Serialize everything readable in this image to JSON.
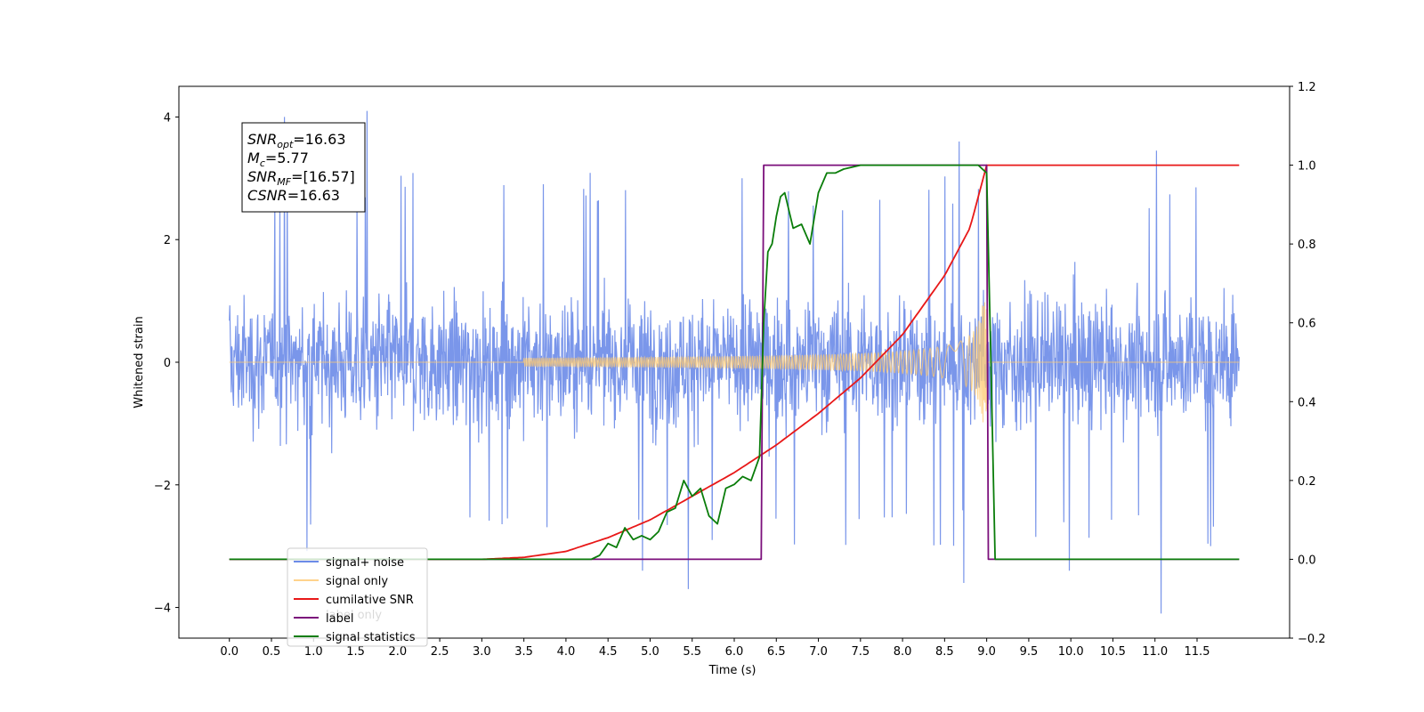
{
  "chart_data": {
    "type": "line",
    "xlabel": "Time (s)",
    "ylabel": "Whitened strain",
    "ylabel_right": "",
    "xlim": [
      -0.6,
      12.6
    ],
    "ylim": [
      -4.5,
      4.5
    ],
    "ylim_right": [
      -0.2,
      1.2
    ],
    "xticks": [
      0.0,
      0.5,
      1.0,
      1.5,
      2.0,
      2.5,
      3.0,
      3.5,
      4.0,
      4.5,
      5.0,
      5.5,
      6.0,
      6.5,
      7.0,
      7.5,
      8.0,
      8.5,
      9.0,
      9.5,
      10.0,
      10.5,
      11.0,
      11.5
    ],
    "xtick_labels": [
      "0.0",
      "0.5",
      "1.0",
      "1.5",
      "2.0",
      "2.5",
      "3.0",
      "3.5",
      "4.0",
      "4.5",
      "5.0",
      "5.5",
      "6.0",
      "6.5",
      "7.0",
      "7.5",
      "8.0",
      "8.5",
      "9.0",
      "9.5",
      "10.0",
      "10.5",
      "11.0",
      "11.5"
    ],
    "yticks_left": [
      4,
      2,
      0,
      -2,
      -4
    ],
    "yticks_left_labels": [
      "4",
      "2",
      "0",
      "−2",
      "−4"
    ],
    "yticks_right": [
      1.2,
      1.0,
      0.8,
      0.6,
      0.4,
      0.2,
      0.0,
      -0.2
    ],
    "yticks_right_labels": [
      "1.2",
      "1.0",
      "0.8",
      "0.6",
      "0.4",
      "0.2",
      "0.0",
      "−0.2"
    ],
    "grid": false,
    "legend_position": "lower-left",
    "series": [
      {
        "name": "signal+ noise",
        "axis": "left",
        "color": "#6b8be8",
        "description_values": {
          "noise_band_abs": 2.2,
          "max_peak": 4.1,
          "min_peak": -4.1
        }
      },
      {
        "name": "signal only",
        "axis": "left",
        "color": "#ffc970",
        "chirp": {
          "start": 3.5,
          "merger": 9.0,
          "peak_amplitude": 0.98
        }
      },
      {
        "name": "cumilative SNR",
        "axis": "right",
        "color": "#e81818",
        "x": [
          0.0,
          3.0,
          3.5,
          4.0,
          4.5,
          5.0,
          5.5,
          6.0,
          6.5,
          7.0,
          7.5,
          8.0,
          8.5,
          8.8,
          9.0,
          12.0
        ],
        "y": [
          0.0,
          0.0,
          0.005,
          0.02,
          0.055,
          0.1,
          0.16,
          0.22,
          0.29,
          0.37,
          0.46,
          0.57,
          0.72,
          0.84,
          1.0,
          1.0
        ]
      },
      {
        "name": "label",
        "axis": "right",
        "color": "#7b0f7b",
        "x": [
          0.0,
          6.32,
          6.35,
          9.0,
          9.02,
          12.0
        ],
        "y": [
          0.0,
          0.0,
          1.0,
          1.0,
          0.0,
          0.0
        ]
      },
      {
        "name": "signal statistics",
        "axis": "right",
        "color": "#0a7d0a",
        "x": [
          0.0,
          4.3,
          4.4,
          4.5,
          4.6,
          4.7,
          4.8,
          4.9,
          5.0,
          5.1,
          5.2,
          5.3,
          5.4,
          5.5,
          5.6,
          5.7,
          5.8,
          5.9,
          6.0,
          6.1,
          6.2,
          6.3,
          6.35,
          6.4,
          6.45,
          6.5,
          6.55,
          6.6,
          6.7,
          6.8,
          6.9,
          7.0,
          7.1,
          7.2,
          7.3,
          7.5,
          8.0,
          8.9,
          9.0,
          9.05,
          9.1,
          12.0
        ],
        "y": [
          0.0,
          0.0,
          0.01,
          0.04,
          0.03,
          0.08,
          0.05,
          0.06,
          0.05,
          0.07,
          0.12,
          0.13,
          0.2,
          0.16,
          0.18,
          0.11,
          0.09,
          0.18,
          0.19,
          0.21,
          0.2,
          0.26,
          0.6,
          0.78,
          0.8,
          0.87,
          0.92,
          0.93,
          0.84,
          0.85,
          0.8,
          0.93,
          0.98,
          0.98,
          0.99,
          1.0,
          1.0,
          1.0,
          0.98,
          0.5,
          0.0,
          0.0
        ]
      }
    ],
    "annotations": [
      {
        "prefix": "SNR",
        "sub": "opt",
        "suffix": "=16.63"
      },
      {
        "prefix": "M",
        "sub": "c",
        "suffix": "=5.77"
      },
      {
        "prefix": "SNR",
        "sub": "MF",
        "suffix": "=[16.57]"
      },
      {
        "prefix": "CSNR",
        "sub": "",
        "suffix": "=16.63"
      }
    ],
    "legend_overlap_text": "label only"
  }
}
